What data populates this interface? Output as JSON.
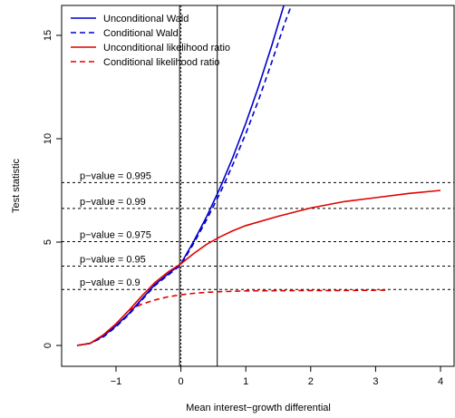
{
  "chart_data": {
    "type": "line",
    "title": "",
    "xlabel": "Mean interest−growth differential",
    "ylabel": "Test statistic",
    "xlim": [
      -1.7,
      4.0
    ],
    "ylim": [
      0,
      16
    ],
    "x_ticks": [
      {
        "value": -1,
        "label": "−1"
      },
      {
        "value": 0,
        "label": "0"
      },
      {
        "value": 1,
        "label": "1"
      },
      {
        "value": 2,
        "label": "2"
      },
      {
        "value": 3,
        "label": "3"
      },
      {
        "value": 4,
        "label": "4"
      }
    ],
    "y_ticks": [
      {
        "value": 0,
        "label": "0"
      },
      {
        "value": 5,
        "label": "5"
      },
      {
        "value": 10,
        "label": "10"
      },
      {
        "value": 15,
        "label": "15"
      }
    ],
    "legend_position": "top-left",
    "series": [
      {
        "name": "Unconditional Wald",
        "color": "#0000cc",
        "dash": "solid",
        "x": [
          -1.6,
          -1.4,
          -1.2,
          -1.0,
          -0.8,
          -0.6,
          -0.4,
          -0.2,
          0.0,
          0.2,
          0.4,
          0.6,
          0.8,
          1.0,
          1.2,
          1.4,
          1.6
        ],
        "y": [
          0.0,
          0.1,
          0.45,
          0.95,
          1.55,
          2.25,
          2.95,
          3.45,
          3.95,
          5.05,
          6.25,
          7.6,
          9.1,
          10.75,
          12.55,
          14.5,
          16.6
        ]
      },
      {
        "name": "Conditional Wald",
        "color": "#0000cc",
        "dash": "dashed",
        "x": [
          -1.6,
          -1.4,
          -1.2,
          -1.0,
          -0.8,
          -0.6,
          -0.4,
          -0.2,
          0.0,
          0.2,
          0.4,
          0.6,
          0.8,
          1.0,
          1.2,
          1.4,
          1.6,
          1.72
        ],
        "y": [
          0.0,
          0.1,
          0.4,
          0.9,
          1.5,
          2.2,
          2.9,
          3.4,
          3.9,
          4.95,
          6.1,
          7.35,
          8.75,
          10.25,
          11.9,
          13.7,
          15.6,
          16.6
        ]
      },
      {
        "name": "Unconditional likelihood ratio",
        "color": "#e00000",
        "dash": "solid",
        "x": [
          -1.6,
          -1.4,
          -1.2,
          -1.0,
          -0.8,
          -0.6,
          -0.4,
          -0.2,
          0.0,
          0.2,
          0.4,
          0.6,
          0.8,
          1.0,
          1.5,
          2.0,
          2.5,
          3.0,
          3.5,
          4.0
        ],
        "y": [
          0.0,
          0.1,
          0.5,
          1.05,
          1.7,
          2.4,
          3.05,
          3.55,
          3.95,
          4.45,
          4.9,
          5.25,
          5.55,
          5.8,
          6.25,
          6.65,
          6.95,
          7.15,
          7.35,
          7.5
        ]
      },
      {
        "name": "Conditional likelihood ratio",
        "color": "#e00000",
        "dash": "dashed",
        "x": [
          -0.8,
          -0.6,
          -0.4,
          -0.2,
          0.0,
          0.2,
          0.4,
          0.6,
          0.8,
          1.0,
          1.5,
          2.0,
          2.5,
          3.0,
          3.15
        ],
        "y": [
          1.7,
          2.0,
          2.2,
          2.35,
          2.45,
          2.52,
          2.57,
          2.6,
          2.62,
          2.64,
          2.65,
          2.66,
          2.66,
          2.67,
          2.67
        ]
      }
    ],
    "hlines": [
      {
        "y": 7.88,
        "label": "p−value = 0.995"
      },
      {
        "y": 6.63,
        "label": "p−value = 0.99"
      },
      {
        "y": 5.02,
        "label": "p−value = 0.975"
      },
      {
        "y": 3.84,
        "label": "p−value = 0.95"
      },
      {
        "y": 2.71,
        "label": "p−value = 0.9"
      }
    ],
    "vlines": [
      {
        "x": 0.0,
        "dash": "dotted"
      },
      {
        "x": -0.02,
        "dash": "solid"
      },
      {
        "x": 0.56,
        "dash": "solid"
      }
    ]
  }
}
